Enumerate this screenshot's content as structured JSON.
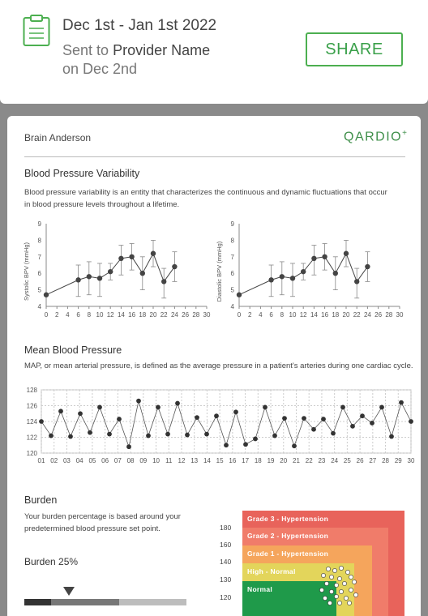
{
  "header": {
    "date_range": "Dec 1st - Jan 1st 2022",
    "sent_prefix": "Sent to",
    "provider": "Provider Name",
    "sent_date": "on Dec 2nd",
    "share_label": "SHARE"
  },
  "report": {
    "patient_name": "Brain Anderson",
    "logo": "QARDIO",
    "logo_mark": "+",
    "bpv": {
      "title": "Blood Pressure Variability",
      "desc_line1": "Blood pressure variability is an entity that characterizes the continuous and dynamic fluctuations that occur",
      "desc_line2": "in blood pressure levels throughout a lifetime."
    },
    "map": {
      "title": "Mean Blood Pressure",
      "desc": "MAP, or mean arterial pressure, is defined as the average pressure in a patient's arteries during one cardiac cycle."
    },
    "burden": {
      "title": "Burden",
      "desc_line1": "Your burden percentage is based around your",
      "desc_line2": "predetermined blood pressure set point.",
      "value_label": "Burden 25%",
      "value": 25,
      "zones": [
        {
          "label": "Grade 3 - Hypertension",
          "color": "#e8635b"
        },
        {
          "label": "Grade 2 - Hypertension",
          "color": "#f07c6a"
        },
        {
          "label": "Grade 1 - Hypertension",
          "color": "#f5a55c"
        },
        {
          "label": "High - Normal",
          "color": "#e3d55b"
        },
        {
          "label": "Normal",
          "color": "#1f9a4a"
        }
      ],
      "y_ticks": [
        "180",
        "160",
        "140",
        "130",
        "120"
      ]
    }
  },
  "chart_data": [
    {
      "type": "line",
      "ylabel": "Systolic BPV (mmHg)",
      "xlim": [
        0,
        30
      ],
      "ylim": [
        4,
        9
      ],
      "x_ticks": [
        "0",
        "2",
        "4",
        "6",
        "8",
        "10",
        "12",
        "14",
        "16",
        "18",
        "20",
        "22",
        "24",
        "26",
        "28",
        "30"
      ],
      "y_ticks": [
        "4",
        "5",
        "6",
        "7",
        "8",
        "9"
      ],
      "x": [
        0,
        6,
        8,
        10,
        12,
        14,
        16,
        18,
        20,
        22,
        24
      ],
      "y": [
        4.7,
        5.6,
        5.8,
        5.7,
        6.1,
        6.9,
        7.0,
        6.0,
        7.2,
        5.5,
        6.4
      ],
      "err_low": [
        4.7,
        4.6,
        4.7,
        4.6,
        5.6,
        5.9,
        6.2,
        5.0,
        6.4,
        4.5,
        5.5
      ],
      "err_high": [
        4.7,
        6.5,
        6.7,
        6.6,
        6.6,
        7.7,
        7.8,
        7.0,
        8.0,
        6.3,
        7.3
      ]
    },
    {
      "type": "line",
      "ylabel": "Diastolic BPV (mmHg)",
      "xlim": [
        0,
        30
      ],
      "ylim": [
        4,
        9
      ],
      "x_ticks": [
        "0",
        "2",
        "4",
        "6",
        "8",
        "10",
        "12",
        "14",
        "16",
        "18",
        "20",
        "22",
        "24",
        "26",
        "28",
        "30"
      ],
      "y_ticks": [
        "4",
        "5",
        "6",
        "7",
        "8",
        "9"
      ],
      "x": [
        0,
        6,
        8,
        10,
        12,
        14,
        16,
        18,
        20,
        22,
        24
      ],
      "y": [
        4.7,
        5.6,
        5.8,
        5.7,
        6.1,
        6.9,
        7.0,
        6.0,
        7.2,
        5.5,
        6.4
      ],
      "err_low": [
        4.7,
        4.6,
        4.7,
        4.6,
        5.6,
        5.9,
        6.2,
        5.0,
        6.4,
        4.5,
        5.5
      ],
      "err_high": [
        4.7,
        6.5,
        6.7,
        6.6,
        6.6,
        7.7,
        7.8,
        7.0,
        8.0,
        6.3,
        7.3
      ]
    },
    {
      "type": "line",
      "ylim": [
        120,
        128
      ],
      "y_ticks": [
        "128",
        "126",
        "124",
        "122",
        "120"
      ],
      "x_ticks": [
        "01",
        "02",
        "03",
        "04",
        "05",
        "06",
        "07",
        "08",
        "09",
        "10",
        "11",
        "12",
        "13",
        "14",
        "15",
        "16",
        "17",
        "18",
        "19",
        "20",
        "21",
        "22",
        "23",
        "24",
        "25",
        "26",
        "27",
        "28",
        "29",
        "30"
      ],
      "y": [
        124.0,
        122.2,
        125.3,
        122.1,
        125.0,
        122.6,
        125.8,
        122.4,
        124.3,
        120.8,
        126.6,
        122.2,
        125.8,
        122.4,
        126.3,
        122.3,
        124.5,
        122.4,
        124.7,
        121.0,
        125.2,
        121.1,
        121.8,
        125.8,
        122.2,
        124.4,
        120.9,
        124.4,
        123.0,
        124.3,
        122.5,
        125.8,
        123.4,
        124.7,
        123.8,
        125.8,
        122.1,
        126.4,
        124.0
      ],
      "grid": true
    }
  ]
}
